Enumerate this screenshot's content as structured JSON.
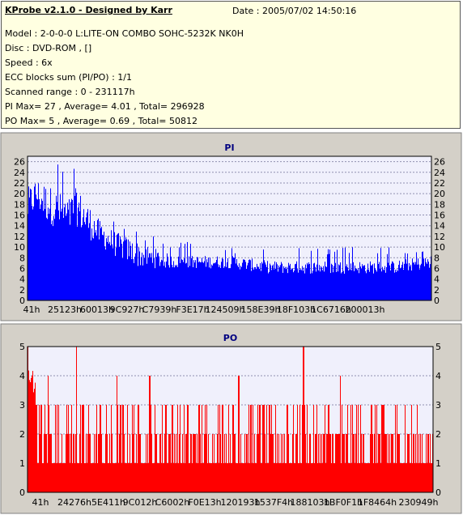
{
  "header": {
    "title": "KProbe v2.1.0 - Designed by Karr",
    "date": "Date : 2005/07/02 14:50:16",
    "lines": [
      "Model : 2-0-0-0 L:LITE-ON COMBO SOHC-5232K NK0H",
      "Disc : DVD-ROM ,  []",
      "Speed : 6x",
      "ECC blocks sum (PI/PO) : 1/1",
      "Scanned range : 0 - 231117h",
      "PI Max= 27 , Average= 4.01 , Total= 296928",
      "PO Max= 5 , Average= 0.69 , Total= 50812"
    ]
  },
  "colors": {
    "info_bg": "#ffffe1",
    "panel_bg": "#d4d0c8",
    "plot_bg": "#f0f0fc",
    "pi_series": "#0000ff",
    "po_series": "#ff0000",
    "title_color": "#000080"
  },
  "chart_data": [
    {
      "type": "bar",
      "title": "PI",
      "ylim": [
        0,
        27
      ],
      "y_ticks": [
        0,
        2,
        4,
        6,
        8,
        10,
        12,
        14,
        16,
        18,
        20,
        22,
        24,
        26
      ],
      "x_tick_labels": [
        "41h",
        "25123h",
        "60013h",
        "9C927h",
        "C7939h",
        "F3E17h",
        "124509h",
        "158E39h",
        "18F103h",
        "1C6716h",
        "200013h"
      ],
      "grid": "horizontal dashed",
      "series": [
        {
          "name": "PI",
          "color": "#0000ff",
          "envelope": [
            [
              0.0,
              14,
              20,
              24
            ],
            [
              0.02,
              17,
              22,
              25
            ],
            [
              0.04,
              15,
              21,
              26
            ],
            [
              0.06,
              14,
              20,
              27
            ],
            [
              0.08,
              13,
              19,
              26
            ],
            [
              0.1,
              12,
              18,
              23
            ],
            [
              0.12,
              14,
              20,
              26
            ],
            [
              0.14,
              12,
              18,
              23
            ],
            [
              0.16,
              11,
              16,
              21
            ],
            [
              0.18,
              10,
              14,
              18
            ],
            [
              0.2,
              9,
              13,
              16
            ],
            [
              0.22,
              8,
              12,
              15
            ],
            [
              0.25,
              7,
              11,
              14
            ],
            [
              0.28,
              6,
              10,
              13
            ],
            [
              0.32,
              6,
              9,
              12
            ],
            [
              0.36,
              6,
              8,
              11
            ],
            [
              0.4,
              6,
              8,
              11
            ],
            [
              0.45,
              6,
              8,
              10
            ],
            [
              0.5,
              6,
              8,
              10
            ],
            [
              0.6,
              5,
              7,
              10
            ],
            [
              0.7,
              5,
              7,
              10
            ],
            [
              0.8,
              5,
              7,
              10
            ],
            [
              0.9,
              5,
              7,
              10
            ],
            [
              1.0,
              6,
              8,
              10
            ]
          ]
        }
      ]
    },
    {
      "type": "bar",
      "title": "PO",
      "ylim": [
        0,
        5
      ],
      "y_ticks": [
        0,
        1,
        2,
        3,
        4,
        5
      ],
      "x_tick_labels": [
        "41h",
        "24276h",
        "5E411h",
        "9C012h",
        "C6002h",
        "F0E13h",
        "120193h",
        "1537F4h",
        "188103h",
        "1BF0F1h",
        "1F8464h",
        "230949h"
      ],
      "grid": "horizontal dashed",
      "series": [
        {
          "name": "PO",
          "color": "#ff0000",
          "peaks": [
            [
              0.0,
              5
            ],
            [
              0.01,
              4
            ],
            [
              0.05,
              4
            ],
            [
              0.1,
              3
            ],
            [
              0.12,
              5
            ],
            [
              0.22,
              4
            ],
            [
              0.3,
              4
            ],
            [
              0.34,
              3
            ],
            [
              0.48,
              3
            ],
            [
              0.52,
              4
            ],
            [
              0.58,
              3
            ],
            [
              0.64,
              3
            ],
            [
              0.68,
              5
            ],
            [
              0.77,
              4
            ],
            [
              0.86,
              3
            ],
            [
              0.93,
              3
            ],
            [
              1.0,
              2
            ]
          ]
        }
      ]
    }
  ]
}
